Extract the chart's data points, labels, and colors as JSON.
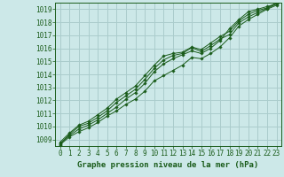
{
  "title": "Graphe pression niveau de la mer (hPa)",
  "bg_color": "#cce8e8",
  "grid_color": "#aacccc",
  "line_color": "#1a5c1a",
  "marker_color": "#1a5c1a",
  "xlim": [
    -0.5,
    23.5
  ],
  "ylim": [
    1008.5,
    1019.5
  ],
  "yticks": [
    1009,
    1010,
    1011,
    1012,
    1013,
    1014,
    1015,
    1016,
    1017,
    1018,
    1019
  ],
  "xticks": [
    0,
    1,
    2,
    3,
    4,
    5,
    6,
    7,
    8,
    9,
    10,
    11,
    12,
    13,
    14,
    15,
    16,
    17,
    18,
    19,
    20,
    21,
    22,
    23
  ],
  "series": [
    [
      1008.7,
      1009.3,
      1009.8,
      1010.1,
      1010.5,
      1011.0,
      1011.5,
      1012.1,
      1012.6,
      1013.3,
      1014.2,
      1014.8,
      1015.2,
      1015.5,
      1015.8,
      1015.6,
      1016.0,
      1016.6,
      1017.5,
      1018.2,
      1018.8,
      1019.0,
      1019.2,
      1019.4
    ],
    [
      1008.6,
      1009.2,
      1009.6,
      1009.9,
      1010.3,
      1010.8,
      1011.2,
      1011.7,
      1012.1,
      1012.7,
      1013.5,
      1013.9,
      1014.3,
      1014.7,
      1015.3,
      1015.2,
      1015.6,
      1016.1,
      1016.8,
      1017.7,
      1018.2,
      1018.6,
      1019.0,
      1019.3
    ],
    [
      1008.8,
      1009.5,
      1010.1,
      1010.4,
      1010.9,
      1011.4,
      1012.1,
      1012.6,
      1013.1,
      1013.9,
      1014.7,
      1015.4,
      1015.6,
      1015.7,
      1016.1,
      1015.9,
      1016.4,
      1016.9,
      1017.3,
      1018.1,
      1018.6,
      1018.9,
      1019.1,
      1019.5
    ],
    [
      1008.65,
      1009.4,
      1010.0,
      1010.25,
      1010.7,
      1011.2,
      1011.85,
      1012.35,
      1012.85,
      1013.6,
      1014.45,
      1015.1,
      1015.45,
      1015.6,
      1016.05,
      1015.75,
      1016.2,
      1016.7,
      1017.05,
      1017.95,
      1018.4,
      1018.75,
      1019.05,
      1019.4
    ]
  ]
}
